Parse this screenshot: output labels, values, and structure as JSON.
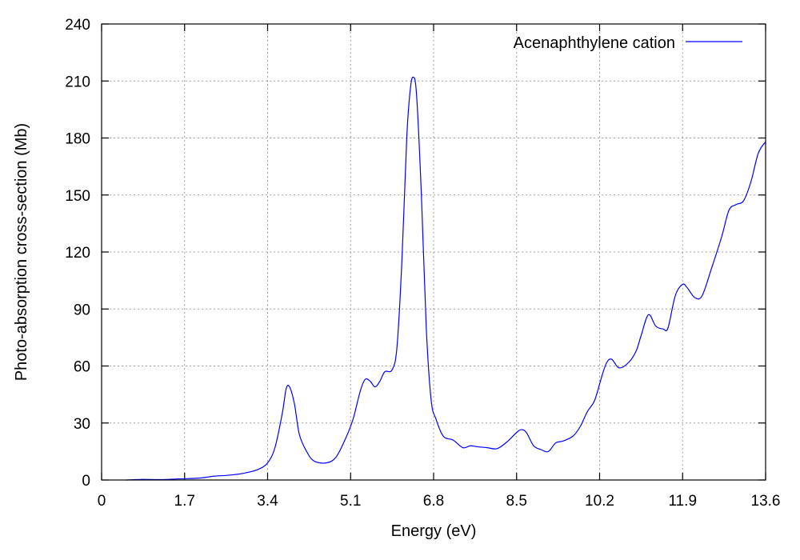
{
  "chart_data": {
    "type": "line",
    "title": "",
    "xlabel": "Energy (eV)",
    "ylabel": "Photo-absorption cross-section (Mb)",
    "xlim": [
      0,
      13.6
    ],
    "ylim": [
      0,
      240
    ],
    "xticks": [
      "0",
      "1.7",
      "3.4",
      "5.1",
      "6.8",
      "8.5",
      "10.2",
      "11.9",
      "13.6"
    ],
    "yticks": [
      "0",
      "30",
      "60",
      "90",
      "120",
      "150",
      "180",
      "210",
      "240"
    ],
    "grid": true,
    "legend_position": "top-right",
    "series": [
      {
        "name": "Acenaphthylene cation",
        "color": "#0000ff",
        "x": [
          0.5,
          0.8,
          1.2,
          1.6,
          2.0,
          2.3,
          2.6,
          2.9,
          3.2,
          3.4,
          3.55,
          3.7,
          3.78,
          3.85,
          3.95,
          4.05,
          4.2,
          4.35,
          4.6,
          4.8,
          5.0,
          5.15,
          5.3,
          5.4,
          5.5,
          5.6,
          5.7,
          5.8,
          5.95,
          6.05,
          6.15,
          6.25,
          6.32,
          6.38,
          6.45,
          6.55,
          6.65,
          6.75,
          6.85,
          7.0,
          7.2,
          7.4,
          7.55,
          7.7,
          7.9,
          8.1,
          8.3,
          8.5,
          8.6,
          8.7,
          8.85,
          9.0,
          9.15,
          9.3,
          9.45,
          9.65,
          9.8,
          9.95,
          10.1,
          10.25,
          10.35,
          10.45,
          10.6,
          10.8,
          10.95,
          11.05,
          11.2,
          11.35,
          11.5,
          11.6,
          11.75,
          11.9,
          12.0,
          12.15,
          12.3,
          12.5,
          12.7,
          12.85,
          13.0,
          13.15,
          13.3,
          13.45,
          13.6
        ],
        "values": [
          0,
          0.3,
          0.2,
          0.6,
          1.0,
          2.0,
          2.5,
          3.5,
          5.5,
          9.0,
          17.0,
          35.0,
          48.0,
          49.0,
          40.0,
          24.0,
          15.0,
          10.0,
          9.0,
          12.0,
          22.0,
          32.0,
          47.0,
          53.0,
          52.0,
          49.0,
          52.0,
          57.0,
          58.0,
          70.0,
          115.0,
          180.0,
          205.0,
          212.0,
          203.0,
          150.0,
          80.0,
          42.0,
          32.0,
          23.0,
          21.0,
          17.0,
          18.0,
          17.5,
          17.0,
          16.5,
          20.0,
          25.0,
          26.5,
          25.0,
          18.0,
          16.0,
          15.0,
          19.5,
          20.5,
          23.0,
          28.0,
          36.0,
          42.0,
          55.0,
          62.0,
          63.5,
          59.0,
          62.0,
          68.0,
          76.0,
          87.0,
          81.0,
          79.5,
          80.0,
          97.0,
          103.0,
          101.0,
          96.0,
          97.0,
          112.0,
          128.0,
          142.0,
          145.0,
          147.0,
          157.0,
          172.0,
          178.0
        ]
      }
    ]
  }
}
